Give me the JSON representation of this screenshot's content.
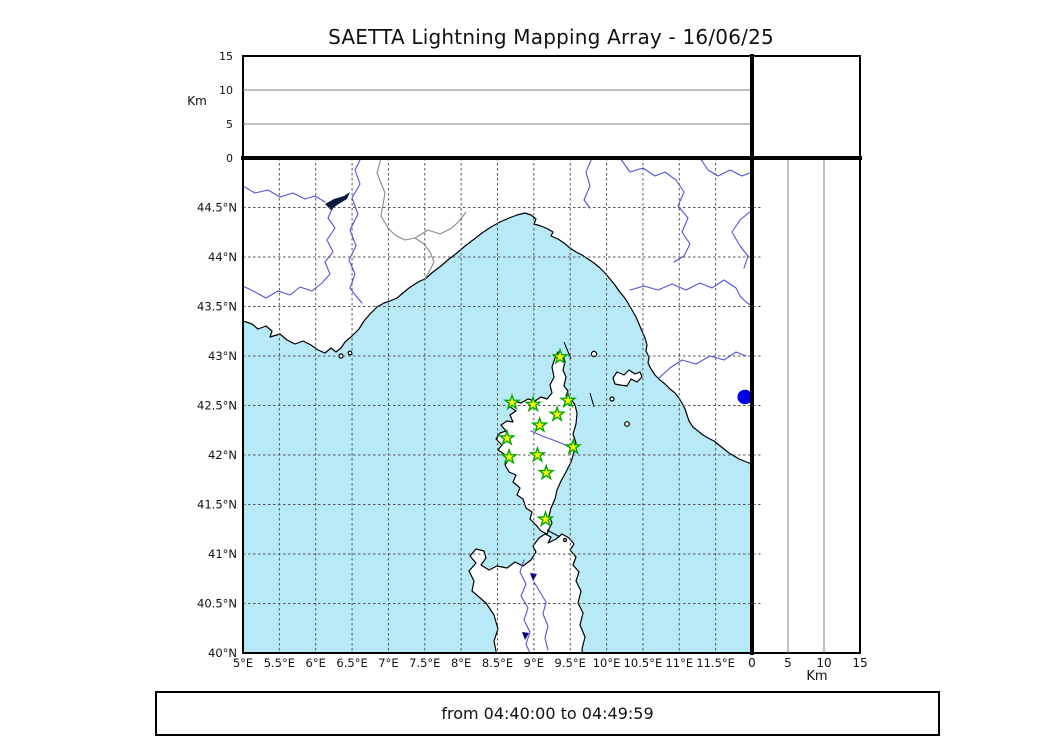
{
  "title": "SAETTA Lightning Mapping Array - 16/06/25",
  "footer": {
    "time_range": "from 04:40:00 to 04:49:59"
  },
  "axes": {
    "altitude_label": "Km",
    "altitude_ticks": [
      0,
      5,
      10,
      15
    ],
    "altitude_gridlines": [
      5,
      10
    ],
    "altitude_max_km": 15,
    "lon_tick_values": [
      5,
      5.5,
      6,
      6.5,
      7,
      7.5,
      8,
      8.5,
      9,
      9.5,
      10,
      10.5,
      11,
      11.5
    ],
    "lon_tick_labels": [
      "5°E",
      "5.5°E",
      "6°E",
      "6.5°E",
      "7°E",
      "7.5°E",
      "8°E",
      "8.5°E",
      "9°E",
      "9.5°E",
      "10°E",
      "10.5°E",
      "11°E",
      "11.5°E"
    ],
    "lat_tick_values": [
      44.5,
      44,
      43.5,
      43,
      42.5,
      42,
      41.5,
      41,
      40.5,
      40
    ],
    "lat_tick_labels": [
      "44.5°N",
      "44°N",
      "43.5°N",
      "43°N",
      "42.5°N",
      "42°N",
      "41.5°N",
      "41°N",
      "40.5°N",
      "40°N"
    ],
    "lon_range_deg_e": [
      5,
      12
    ],
    "lat_range_deg_n": [
      40,
      45
    ]
  },
  "colors": {
    "sea": "#b7e9f6",
    "land": "#ffffff",
    "coastline": "#000000",
    "river": "#5252de",
    "lake": "#0000e6",
    "grid": "#555555",
    "country_border": "#8a8a8a",
    "station_fill": "#ffff00",
    "station_edge": "#00a800"
  },
  "stations_lon_lat": [
    [
      9.36,
      42.99
    ],
    [
      8.7,
      42.53
    ],
    [
      8.99,
      42.51
    ],
    [
      9.47,
      42.55
    ],
    [
      9.32,
      42.41
    ],
    [
      9.08,
      42.3
    ],
    [
      8.63,
      42.17
    ],
    [
      9.54,
      42.08
    ],
    [
      9.05,
      42.0
    ],
    [
      8.66,
      41.98
    ],
    [
      9.17,
      41.82
    ],
    [
      9.16,
      41.35
    ]
  ],
  "chart_data": {
    "type": "map",
    "title": "SAETTA Lightning Mapping Array - 16/06/25",
    "time_window": "from 04:40:00 to 04:49:59",
    "legend_position": "none",
    "grid": "on",
    "panels": [
      {
        "name": "altitude-vs-longitude",
        "x_range_deg_e": [
          5,
          12
        ],
        "y_range_km": [
          0,
          15
        ],
        "y_label": "Km",
        "y_ticks": [
          0,
          5,
          10,
          15
        ],
        "gridlines_km": [
          5,
          10
        ],
        "points": []
      },
      {
        "name": "altitude-histogram",
        "points": []
      },
      {
        "name": "plan-view-map",
        "lon_range_deg_e": [
          5,
          12
        ],
        "lat_range_deg_n": [
          40,
          45
        ],
        "region": "Corsica, Ligurian Sea, Côte d'Azur, Tuscany, northern Sardinia",
        "stations_lon_lat": [
          [
            9.36,
            42.99
          ],
          [
            8.7,
            42.53
          ],
          [
            8.99,
            42.51
          ],
          [
            9.47,
            42.55
          ],
          [
            9.32,
            42.41
          ],
          [
            9.08,
            42.3
          ],
          [
            8.63,
            42.17
          ],
          [
            9.54,
            42.08
          ],
          [
            9.05,
            42.0
          ],
          [
            8.66,
            41.98
          ],
          [
            9.17,
            41.82
          ],
          [
            9.16,
            41.35
          ]
        ],
        "lightning_points": []
      },
      {
        "name": "altitude-vs-latitude",
        "x_range_km": [
          0,
          15
        ],
        "x_label": "Km",
        "x_ticks": [
          0,
          5,
          10,
          15
        ],
        "gridlines_km": [
          5,
          10
        ],
        "points": []
      }
    ]
  }
}
